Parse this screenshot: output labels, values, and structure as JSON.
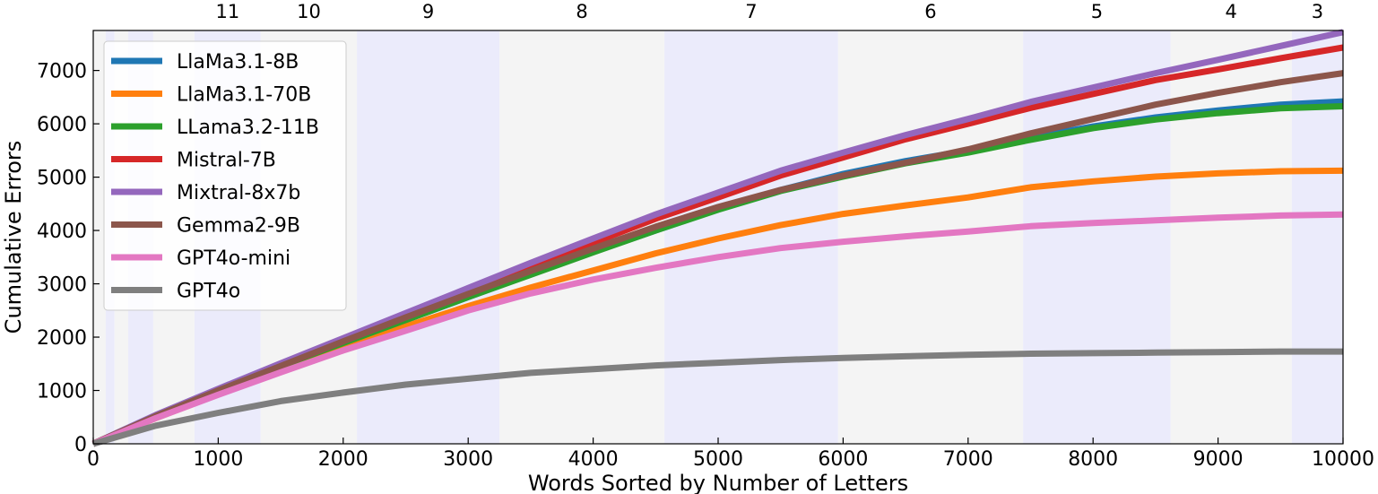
{
  "chart_data": {
    "type": "line",
    "xlabel": "Words Sorted by Number of Letters",
    "ylabel": "Cumulative Errors",
    "xlim": [
      0,
      10000
    ],
    "ylim": [
      0,
      7750
    ],
    "xticks": [
      0,
      1000,
      2000,
      3000,
      4000,
      5000,
      6000,
      7000,
      8000,
      9000,
      10000
    ],
    "yticks": [
      0,
      1000,
      2000,
      3000,
      4000,
      5000,
      6000,
      7000
    ],
    "xtick_labels": [
      "0",
      "1000",
      "2000",
      "3000",
      "4000",
      "5000",
      "6000",
      "7000",
      "8000",
      "9000",
      "10000"
    ],
    "ytick_labels": [
      "0",
      "1000",
      "2000",
      "3000",
      "4000",
      "5000",
      "6000",
      "7000"
    ],
    "legend_position": "top-left",
    "grid": false,
    "bands": [
      {
        "label": "",
        "x0": 0,
        "x1": 100,
        "shade": "grey"
      },
      {
        "label": "",
        "x0": 100,
        "x1": 170,
        "shade": "blue"
      },
      {
        "label": "",
        "x0": 170,
        "x1": 280,
        "shade": "grey"
      },
      {
        "label": "",
        "x0": 280,
        "x1": 480,
        "shade": "blue"
      },
      {
        "label": "",
        "x0": 480,
        "x1": 810,
        "shade": "grey"
      },
      {
        "label": "11",
        "x0": 810,
        "x1": 1340,
        "shade": "blue"
      },
      {
        "label": "10",
        "x0": 1340,
        "x1": 2110,
        "shade": "grey"
      },
      {
        "label": "9",
        "x0": 2110,
        "x1": 3250,
        "shade": "blue"
      },
      {
        "label": "8",
        "x0": 3250,
        "x1": 4570,
        "shade": "grey"
      },
      {
        "label": "7",
        "x0": 4570,
        "x1": 5960,
        "shade": "blue"
      },
      {
        "label": "6",
        "x0": 5960,
        "x1": 7440,
        "shade": "grey"
      },
      {
        "label": "5",
        "x0": 7440,
        "x1": 8620,
        "shade": "blue"
      },
      {
        "label": "4",
        "x0": 8620,
        "x1": 9590,
        "shade": "grey"
      },
      {
        "label": "3",
        "x0": 9590,
        "x1": 10000,
        "shade": "blue"
      }
    ],
    "x": [
      0,
      500,
      1000,
      1500,
      2000,
      2500,
      3000,
      3500,
      4000,
      4500,
      5000,
      5500,
      6000,
      6500,
      7000,
      7500,
      8000,
      8500,
      9000,
      9500,
      10000
    ],
    "series": [
      {
        "name": "LlaMa3.1-8B",
        "color": "#1f77b4",
        "values": [
          0,
          520,
          1000,
          1460,
          1890,
          2320,
          2750,
          3180,
          3600,
          4000,
          4400,
          4760,
          5060,
          5300,
          5500,
          5740,
          5950,
          6120,
          6250,
          6360,
          6420
        ]
      },
      {
        "name": "LlaMa3.1-70B",
        "color": "#ff7f0e",
        "values": [
          0,
          480,
          930,
          1390,
          1820,
          2200,
          2580,
          2930,
          3250,
          3570,
          3850,
          4100,
          4310,
          4470,
          4620,
          4810,
          4920,
          5010,
          5070,
          5110,
          5120
        ]
      },
      {
        "name": "LLama3.2-11B",
        "color": "#2ca02c",
        "values": [
          0,
          520,
          1000,
          1460,
          1890,
          2320,
          2750,
          3170,
          3590,
          4000,
          4390,
          4740,
          5010,
          5260,
          5460,
          5700,
          5920,
          6080,
          6200,
          6290,
          6330
        ]
      },
      {
        "name": "Mistral-7B",
        "color": "#d62728",
        "values": [
          0,
          530,
          1010,
          1480,
          1940,
          2400,
          2860,
          3320,
          3770,
          4220,
          4620,
          5030,
          5370,
          5710,
          6000,
          6300,
          6560,
          6820,
          7020,
          7230,
          7430
        ]
      },
      {
        "name": "Mixtral-8x7b",
        "color": "#9467bd",
        "values": [
          0,
          540,
          1030,
          1510,
          1980,
          2450,
          2920,
          3390,
          3850,
          4300,
          4710,
          5120,
          5460,
          5790,
          6090,
          6410,
          6680,
          6950,
          7200,
          7460,
          7720
        ]
      },
      {
        "name": "Gemma2-9B",
        "color": "#8c564b",
        "values": [
          0,
          520,
          1000,
          1460,
          1920,
          2370,
          2810,
          3240,
          3660,
          4070,
          4440,
          4760,
          5030,
          5270,
          5520,
          5820,
          6090,
          6360,
          6580,
          6780,
          6950
        ]
      },
      {
        "name": "GPT4o-mini",
        "color": "#e377c2",
        "values": [
          0,
          480,
          920,
          1340,
          1750,
          2120,
          2500,
          2820,
          3080,
          3300,
          3500,
          3670,
          3790,
          3890,
          3980,
          4080,
          4140,
          4190,
          4240,
          4280,
          4300
        ]
      },
      {
        "name": "GPT4o",
        "color": "#7f7f7f",
        "values": [
          0,
          340,
          580,
          800,
          960,
          1110,
          1220,
          1330,
          1400,
          1470,
          1520,
          1570,
          1610,
          1640,
          1670,
          1690,
          1700,
          1710,
          1720,
          1730,
          1730
        ]
      }
    ]
  }
}
